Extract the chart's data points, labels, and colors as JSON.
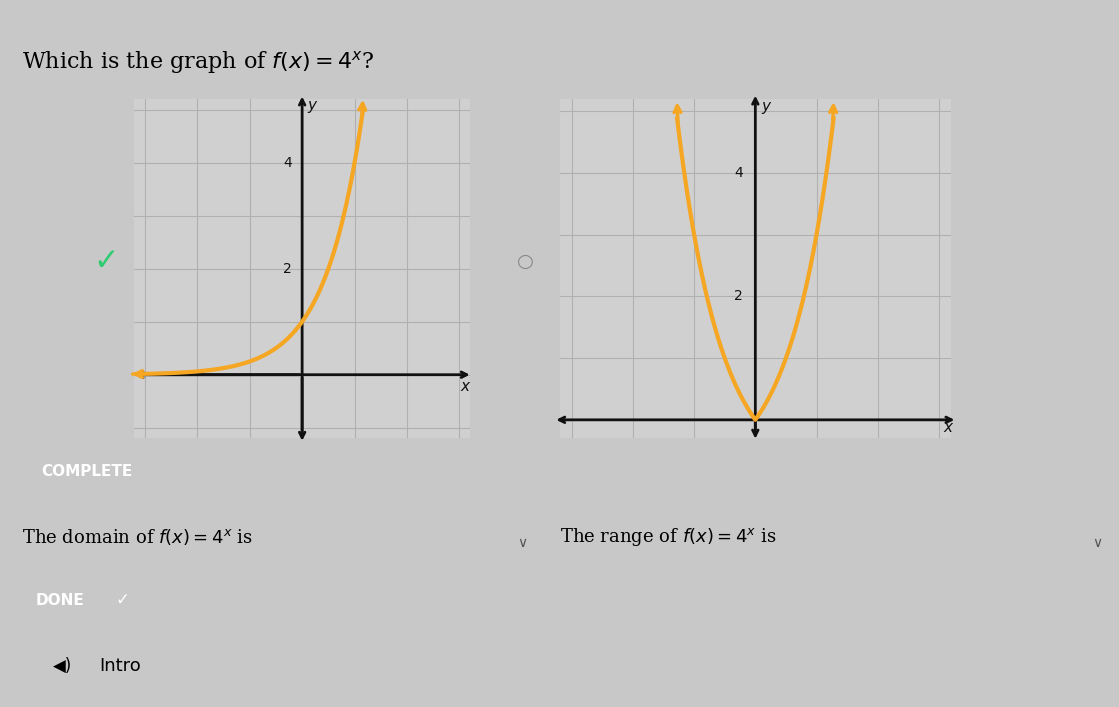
{
  "bg_color": "#c8c8c8",
  "graph_bg": "#d0d0d0",
  "title_fontsize": 16,
  "curve_color": "#F5A623",
  "curve_linewidth": 3.0,
  "grid_color": "#b0b0b0",
  "axis_color": "#111111",
  "complete_bg": "#2c2c2c",
  "complete_border": "#555555",
  "complete_text": "COMPLETE",
  "complete_text_color": "white",
  "done_bg": "#2c2c2c",
  "done_text": "DONE",
  "done_text_color": "white",
  "done_check_bg": "#e07800",
  "domain_label": "The domain of $f(x) = 4^x$ is",
  "range_label": "The range of $f(x) = 4^x$ is",
  "intro_text": "Intro",
  "checkmark_color": "#2ecc71",
  "radio_color": "#888888"
}
